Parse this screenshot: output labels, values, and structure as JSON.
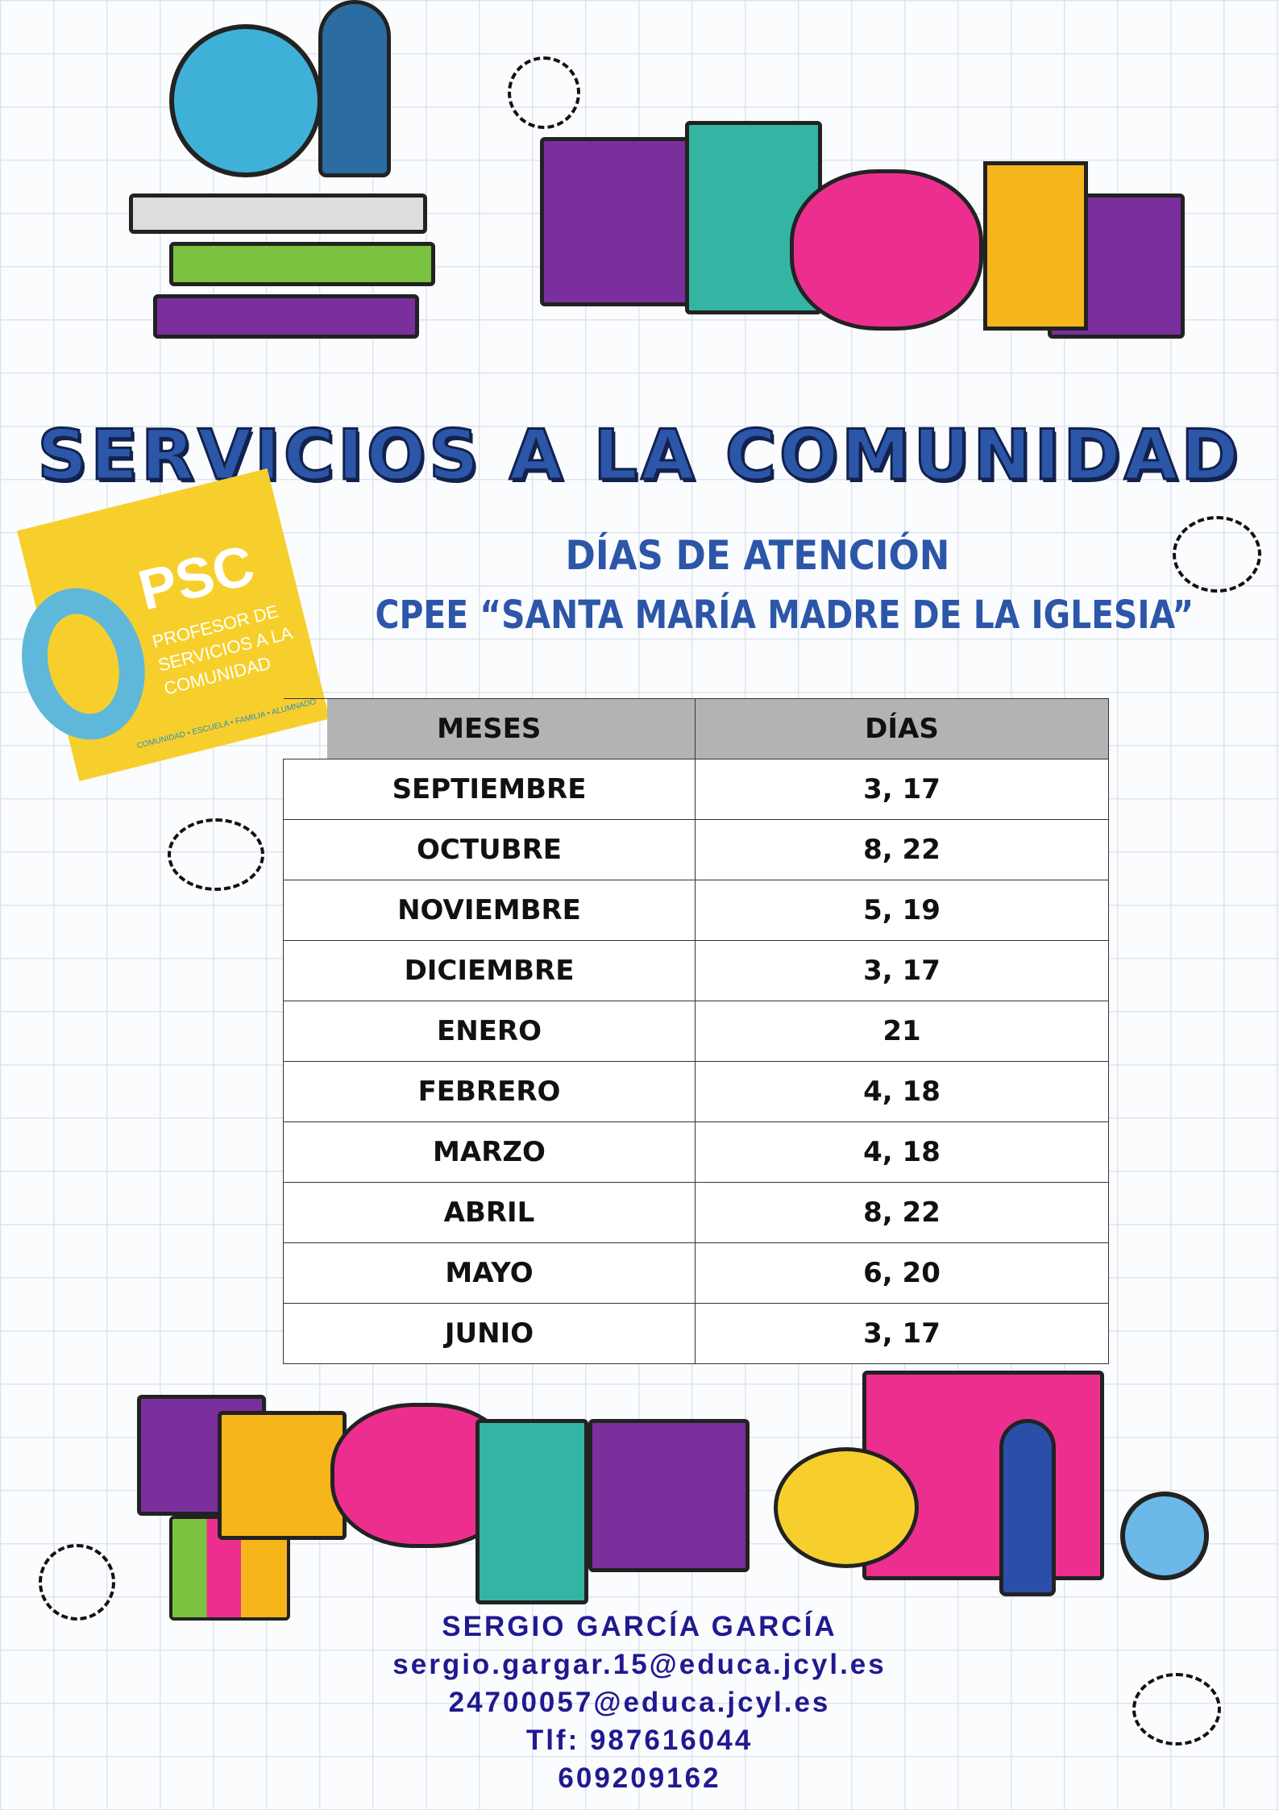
{
  "title": "SERVICIOS A LA COMUNIDAD",
  "subtitle": "DÍAS DE ATENCIÓN",
  "school": "CPEE “SANTA MARÍA MADRE DE LA IGLESIA”",
  "logo": {
    "acronym": "PSC",
    "text": "PROFESOR DE SERVICIOS A LA COMUNIDAD",
    "tagline": "COMUNIDAD • ESCUELA • FAMILIA • ALUMNADO"
  },
  "table": {
    "headers": [
      "MESES",
      "DÍAS"
    ],
    "rows": [
      [
        "SEPTIEMBRE",
        "3, 17"
      ],
      [
        "OCTUBRE",
        "8, 22"
      ],
      [
        "NOVIEMBRE",
        "5, 19"
      ],
      [
        "DICIEMBRE",
        "3, 17"
      ],
      [
        "ENERO",
        "21"
      ],
      [
        "FEBRERO",
        "4, 18"
      ],
      [
        "MARZO",
        "4, 18"
      ],
      [
        "ABRIL",
        "8, 22"
      ],
      [
        "MAYO",
        "6, 20"
      ],
      [
        "JUNIO",
        "3, 17"
      ]
    ]
  },
  "contact": {
    "name": "SERGIO GARCÍA GARCÍA",
    "email1": "sergio.gargar.15@educa.jcyl.es",
    "email2": "24700057@educa.jcyl.es",
    "phone1": "Tlf: 987616044",
    "phone2": "609209162"
  }
}
